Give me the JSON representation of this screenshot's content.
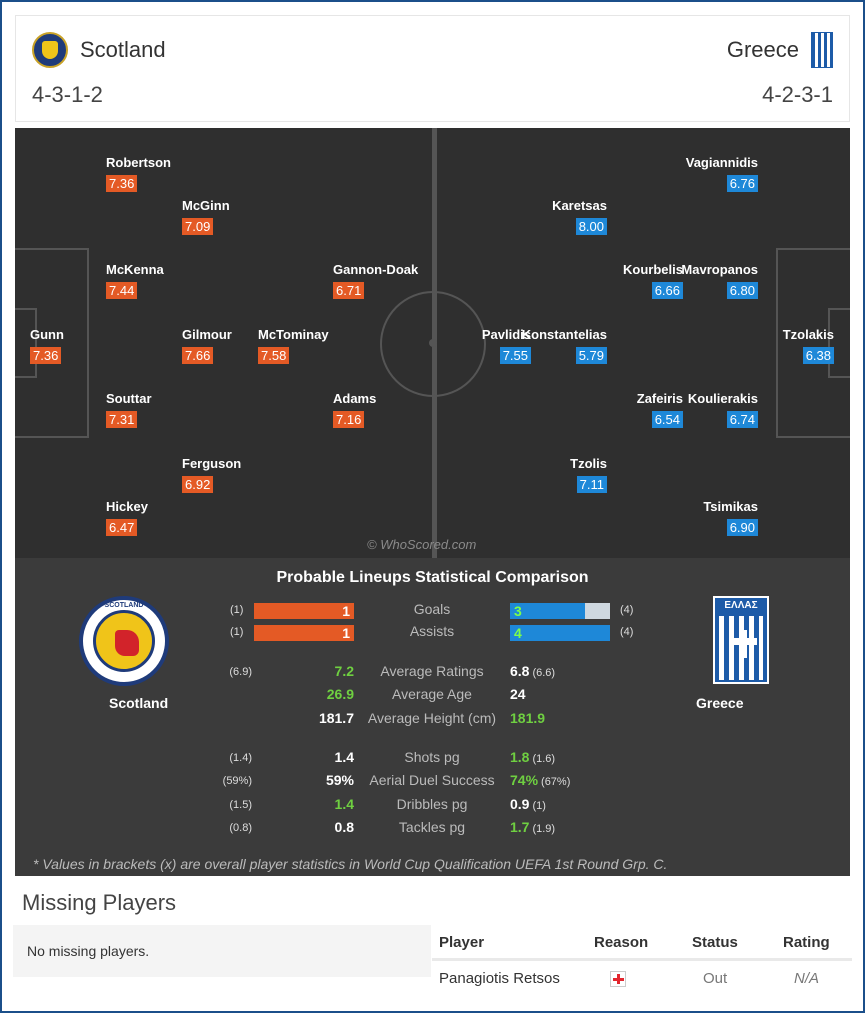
{
  "header": {
    "home": {
      "name": "Scotland",
      "formation": "4-3-1-2",
      "crest_icon": "scotland-crest-icon"
    },
    "away": {
      "name": "Greece",
      "formation": "4-2-3-1",
      "crest_icon": "greece-flag-icon"
    }
  },
  "pitch": {
    "watermark": "© WhoScored.com",
    "home_players": [
      {
        "name": "Robertson",
        "rating": "7.36"
      },
      {
        "name": "McGinn",
        "rating": "7.09"
      },
      {
        "name": "McKenna",
        "rating": "7.44"
      },
      {
        "name": "Gannon-Doak",
        "rating": "6.71"
      },
      {
        "name": "Gunn",
        "rating": "7.36"
      },
      {
        "name": "Gilmour",
        "rating": "7.66"
      },
      {
        "name": "McTominay",
        "rating": "7.58"
      },
      {
        "name": "Souttar",
        "rating": "7.31"
      },
      {
        "name": "Adams",
        "rating": "7.16"
      },
      {
        "name": "Ferguson",
        "rating": "6.92"
      },
      {
        "name": "Hickey",
        "rating": "6.47"
      }
    ],
    "away_players": [
      {
        "name": "Vagiannidis",
        "rating": "6.76"
      },
      {
        "name": "Karetsas",
        "rating": "8.00"
      },
      {
        "name": "Kourbelis",
        "rating": "6.66"
      },
      {
        "name": "Mavropanos",
        "rating": "6.80"
      },
      {
        "name": "Pavlidis",
        "rating": "7.55"
      },
      {
        "name": "Konstantelias",
        "rating": "5.79"
      },
      {
        "name": "Tzolakis",
        "rating": "6.38"
      },
      {
        "name": "Zafeiris",
        "rating": "6.54"
      },
      {
        "name": "Koulierakis",
        "rating": "6.74"
      },
      {
        "name": "Tzolis",
        "rating": "7.11"
      },
      {
        "name": "Tsimikas",
        "rating": "6.90"
      }
    ]
  },
  "stats": {
    "title": "Probable Lineups Statistical Comparison",
    "home_name": "Scotland",
    "away_name": "Greece",
    "home_crest_text": "SCOTLAND",
    "away_flag_text": "ΕΛΛΑΣ",
    "bars": [
      {
        "label": "Goals",
        "home": "1",
        "home_br": "(1)",
        "away": "3",
        "away_br": "(4)",
        "away_fill": 0.75
      },
      {
        "label": "Assists",
        "home": "1",
        "home_br": "(1)",
        "away": "4",
        "away_br": "(4)",
        "away_fill": 1.0
      }
    ],
    "rows": [
      {
        "label": "Average Ratings",
        "home": "7.2",
        "home_br": "(6.9)",
        "away": "6.8",
        "away_br": "(6.6)",
        "home_color": "green",
        "away_color": "white"
      },
      {
        "label": "Average Age",
        "home": "26.9",
        "home_br": "",
        "away": "24",
        "away_br": "",
        "home_color": "green",
        "away_color": "white"
      },
      {
        "label": "Average Height (cm)",
        "home": "181.7",
        "home_br": "",
        "away": "181.9",
        "away_br": "",
        "home_color": "white",
        "away_color": "green"
      },
      {
        "label": "Shots pg",
        "home": "1.4",
        "home_br": "(1.4)",
        "away": "1.8",
        "away_br": "(1.6)",
        "home_color": "white",
        "away_color": "green"
      },
      {
        "label": "Aerial Duel Success",
        "home": "59%",
        "home_br": "(59%)",
        "away": "74%",
        "away_br": "(67%)",
        "home_color": "white",
        "away_color": "green"
      },
      {
        "label": "Dribbles pg",
        "home": "1.4",
        "home_br": "(1.5)",
        "away": "0.9",
        "away_br": "(1)",
        "home_color": "green",
        "away_color": "white"
      },
      {
        "label": "Tackles pg",
        "home": "0.8",
        "home_br": "(0.8)",
        "away": "1.7",
        "away_br": "(1.9)",
        "home_color": "white",
        "away_color": "green"
      }
    ],
    "footnote": "* Values in brackets (x) are overall player statistics in World Cup Qualification UEFA 1st Round Grp. C."
  },
  "missing": {
    "title": "Missing Players",
    "home_text": "No missing players.",
    "columns": [
      "Player",
      "Reason",
      "Status",
      "Rating"
    ],
    "rows": [
      {
        "player": "Panagiotis Retsos",
        "reason_icon": "injury-cross-icon",
        "status": "Out",
        "rating": "N/A"
      }
    ]
  }
}
